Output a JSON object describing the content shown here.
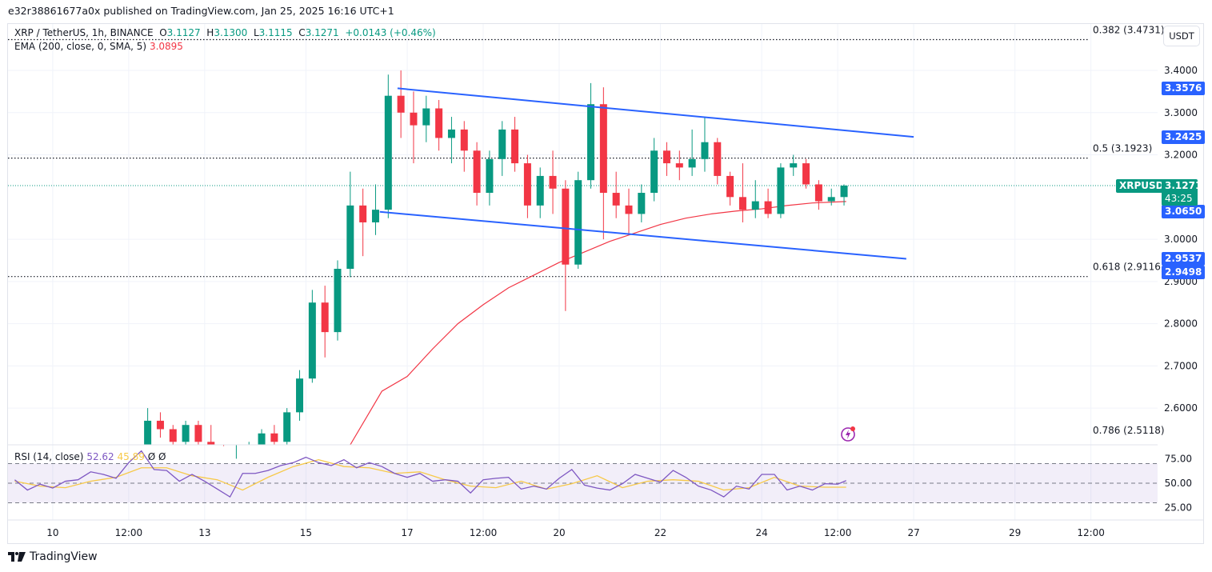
{
  "publish_line": "e32r38861677a0x published on TradingView.com, Jan 25, 2025 16:16 UTC+1",
  "legend": {
    "symbol": "XRP / TetherUS, 1h, BINANCE",
    "o_label": "O",
    "o": "3.1127",
    "h_label": "H",
    "h": "3.1300",
    "l_label": "L",
    "l": "3.1115",
    "c_label": "C",
    "c": "3.1271",
    "change": "+0.0143 (+0.46%)",
    "ema_label": "EMA (200, close, 0, SMA, 5)",
    "ema_value": "3.0895"
  },
  "rsi_legend": {
    "label": "RSI (14, close)",
    "rsi": "52.62",
    "ma": "45.89",
    "extra1": "Ø",
    "extra2": "Ø"
  },
  "currency_button": "USDT",
  "colors": {
    "up": "#089981",
    "down": "#f23645",
    "ema": "#f23645",
    "channel": "#2962ff",
    "rsi": "#7e57c2",
    "rsi_ma": "#f7c948",
    "tag_blue": "#2962ff",
    "tag_green": "#089981",
    "flash": "#9c27b0"
  },
  "price_tags": [
    {
      "value": "3.3576",
      "color": "blue"
    },
    {
      "value": "3.2425",
      "color": "blue"
    },
    {
      "value": "3.0650",
      "color": "blue"
    },
    {
      "value": "2.9537",
      "color": "blue"
    },
    {
      "value": "2.9498",
      "color": "blue"
    }
  ],
  "last_price": {
    "symbol": "XRPUSDT",
    "value": "3.1271",
    "countdown": "43:25"
  },
  "fib_levels": [
    {
      "label": "0.382 (3.4731)",
      "price": 3.4731
    },
    {
      "label": "0.5 (3.1923)",
      "price": 3.1923
    },
    {
      "label": "0.618 (2.9116)",
      "price": 2.9116
    },
    {
      "label": "0.786 (2.5118)",
      "price": 2.5118
    }
  ],
  "flash_icon": "lightning-icon",
  "brand": "TradingView",
  "chart_data": [
    {
      "type": "candlestick",
      "title": "XRP / TetherUS, 1h, BINANCE",
      "ylim": [
        2.513,
        3.51
      ],
      "xlim": [
        "2025-01-09T02:48",
        "2025-01-31T19:36"
      ],
      "grid": true,
      "y_ticks": [
        "3.4000",
        "3.3000",
        "3.2000",
        "3.0000",
        "2.9000",
        "2.8000",
        "2.7000",
        "2.6000"
      ],
      "x_ticks": [
        {
          "label": "10",
          "t": "2025-01-10T00:00"
        },
        {
          "label": "12:00",
          "t": "2025-01-11T12:00"
        },
        {
          "label": "13",
          "t": "2025-01-13T00:00"
        },
        {
          "label": "15",
          "t": "2025-01-15T00:00"
        },
        {
          "label": "17",
          "t": "2025-01-17T00:00"
        },
        {
          "label": "12:00",
          "t": "2025-01-18T12:00"
        },
        {
          "label": "20",
          "t": "2025-01-20T00:00"
        },
        {
          "label": "22",
          "t": "2025-01-22T00:00"
        },
        {
          "label": "24",
          "t": "2025-01-24T00:00"
        },
        {
          "label": "12:00",
          "t": "2025-01-25T12:00"
        },
        {
          "label": "27",
          "t": "2025-01-27T00:00"
        },
        {
          "label": "29",
          "t": "2025-01-29T00:00"
        },
        {
          "label": "12:00",
          "t": "2025-01-30T12:00"
        }
      ],
      "candles_ohlc": [
        [
          "2025-01-11T18:00",
          2.5,
          2.6,
          2.49,
          2.57
        ],
        [
          "2025-01-12T00:00",
          2.57,
          2.59,
          2.53,
          2.55
        ],
        [
          "2025-01-12T06:00",
          2.55,
          2.56,
          2.5,
          2.52
        ],
        [
          "2025-01-12T12:00",
          2.52,
          2.57,
          2.51,
          2.56
        ],
        [
          "2025-01-12T18:00",
          2.56,
          2.57,
          2.5,
          2.52
        ],
        [
          "2025-01-13T00:00",
          2.52,
          2.56,
          2.48,
          2.5
        ],
        [
          "2025-01-13T06:00",
          2.5,
          2.51,
          2.4,
          2.44
        ],
        [
          "2025-01-13T12:00",
          2.44,
          2.48,
          2.38,
          2.46
        ],
        [
          "2025-01-13T18:00",
          2.46,
          2.52,
          2.44,
          2.5
        ],
        [
          "2025-01-14T00:00",
          2.5,
          2.55,
          2.49,
          2.54
        ],
        [
          "2025-01-14T06:00",
          2.54,
          2.56,
          2.51,
          2.52
        ],
        [
          "2025-01-14T12:00",
          2.52,
          2.6,
          2.51,
          2.59
        ],
        [
          "2025-01-14T18:00",
          2.59,
          2.69,
          2.57,
          2.67
        ],
        [
          "2025-01-15T00:00",
          2.67,
          2.88,
          2.66,
          2.85
        ],
        [
          "2025-01-15T06:00",
          2.85,
          2.89,
          2.72,
          2.78
        ],
        [
          "2025-01-15T12:00",
          2.78,
          2.95,
          2.76,
          2.93
        ],
        [
          "2025-01-15T18:00",
          2.93,
          3.16,
          2.91,
          3.08
        ],
        [
          "2025-01-16T00:00",
          3.08,
          3.12,
          2.96,
          3.04
        ],
        [
          "2025-01-16T06:00",
          3.04,
          3.13,
          3.01,
          3.07
        ],
        [
          "2025-01-16T12:00",
          3.07,
          3.39,
          3.05,
          3.34
        ],
        [
          "2025-01-16T18:00",
          3.34,
          3.4,
          3.24,
          3.3
        ],
        [
          "2025-01-17T00:00",
          3.3,
          3.35,
          3.18,
          3.27
        ],
        [
          "2025-01-17T06:00",
          3.27,
          3.34,
          3.23,
          3.31
        ],
        [
          "2025-01-17T12:00",
          3.31,
          3.33,
          3.21,
          3.24
        ],
        [
          "2025-01-17T18:00",
          3.24,
          3.29,
          3.18,
          3.26
        ],
        [
          "2025-01-18T00:00",
          3.26,
          3.28,
          3.16,
          3.21
        ],
        [
          "2025-01-18T06:00",
          3.21,
          3.23,
          3.08,
          3.11
        ],
        [
          "2025-01-18T12:00",
          3.11,
          3.21,
          3.08,
          3.19
        ],
        [
          "2025-01-18T18:00",
          3.19,
          3.28,
          3.15,
          3.26
        ],
        [
          "2025-01-19T00:00",
          3.26,
          3.29,
          3.16,
          3.18
        ],
        [
          "2025-01-19T06:00",
          3.18,
          3.2,
          3.05,
          3.08
        ],
        [
          "2025-01-19T12:00",
          3.08,
          3.17,
          3.05,
          3.15
        ],
        [
          "2025-01-19T18:00",
          3.15,
          3.21,
          3.06,
          3.12
        ],
        [
          "2025-01-20T00:00",
          3.12,
          3.14,
          2.83,
          2.94
        ],
        [
          "2025-01-20T06:00",
          2.94,
          3.16,
          2.93,
          3.14
        ],
        [
          "2025-01-20T12:00",
          3.14,
          3.37,
          3.12,
          3.32
        ],
        [
          "2025-01-20T18:00",
          3.32,
          3.36,
          3.0,
          3.11
        ],
        [
          "2025-01-21T00:00",
          3.11,
          3.16,
          3.05,
          3.08
        ],
        [
          "2025-01-21T06:00",
          3.08,
          3.12,
          3.01,
          3.06
        ],
        [
          "2025-01-21T12:00",
          3.06,
          3.13,
          3.04,
          3.11
        ],
        [
          "2025-01-21T18:00",
          3.11,
          3.24,
          3.09,
          3.21
        ],
        [
          "2025-01-22T00:00",
          3.21,
          3.23,
          3.15,
          3.18
        ],
        [
          "2025-01-22T06:00",
          3.18,
          3.21,
          3.14,
          3.17
        ],
        [
          "2025-01-22T12:00",
          3.17,
          3.26,
          3.15,
          3.19
        ],
        [
          "2025-01-22T18:00",
          3.19,
          3.29,
          3.16,
          3.23
        ],
        [
          "2025-01-23T00:00",
          3.23,
          3.24,
          3.13,
          3.15
        ],
        [
          "2025-01-23T06:00",
          3.15,
          3.16,
          3.08,
          3.1
        ],
        [
          "2025-01-23T12:00",
          3.1,
          3.18,
          3.04,
          3.07
        ],
        [
          "2025-01-23T18:00",
          3.07,
          3.14,
          3.05,
          3.09
        ],
        [
          "2025-01-24T00:00",
          3.09,
          3.12,
          3.05,
          3.06
        ],
        [
          "2025-01-24T06:00",
          3.06,
          3.18,
          3.05,
          3.17
        ],
        [
          "2025-01-24T12:00",
          3.17,
          3.2,
          3.15,
          3.18
        ],
        [
          "2025-01-24T18:00",
          3.18,
          3.19,
          3.12,
          3.13
        ],
        [
          "2025-01-25T00:00",
          3.13,
          3.14,
          3.07,
          3.09
        ],
        [
          "2025-01-25T06:00",
          3.09,
          3.12,
          3.08,
          3.1
        ],
        [
          "2025-01-25T12:00",
          3.1,
          3.13,
          3.08,
          3.1271
        ]
      ],
      "ema200": [
        [
          "2025-01-15T21:00",
          2.51
        ],
        [
          "2025-01-16T12:00",
          2.64
        ],
        [
          "2025-01-17T00:00",
          2.675
        ],
        [
          "2025-01-17T12:00",
          2.74
        ],
        [
          "2025-01-18T00:00",
          2.8
        ],
        [
          "2025-01-18T12:00",
          2.845
        ],
        [
          "2025-01-19T00:00",
          2.885
        ],
        [
          "2025-01-19T12:00",
          2.915
        ],
        [
          "2025-01-20T00:00",
          2.945
        ],
        [
          "2025-01-20T12:00",
          2.97
        ],
        [
          "2025-01-21T00:00",
          2.995
        ],
        [
          "2025-01-21T12:00",
          3.015
        ],
        [
          "2025-01-22T00:00",
          3.035
        ],
        [
          "2025-01-22T12:00",
          3.05
        ],
        [
          "2025-01-23T00:00",
          3.06
        ],
        [
          "2025-01-23T12:00",
          3.067
        ],
        [
          "2025-01-24T00:00",
          3.072
        ],
        [
          "2025-01-24T12:00",
          3.08
        ],
        [
          "2025-01-25T00:00",
          3.086
        ],
        [
          "2025-01-25T16:00",
          3.0895
        ]
      ],
      "channel": {
        "upper": [
          [
            "2025-01-16T19:24",
            3.3576
          ],
          [
            "2025-01-27T00:00",
            3.2425
          ]
        ],
        "lower": [
          [
            "2025-01-16T11:00",
            3.065
          ],
          [
            "2025-01-26T20:30",
            2.9537
          ]
        ]
      }
    },
    {
      "type": "line",
      "title": "RSI (14, close)",
      "ylim": [
        12.4,
        88.4
      ],
      "bands": [
        70,
        50,
        30
      ],
      "y_ticks": [
        "75.00",
        "50.00",
        "25.00"
      ],
      "rsi": [
        [
          "2025-01-09T06:00",
          53.5
        ],
        [
          "2025-01-09T12:00",
          43
        ],
        [
          "2025-01-09T18:00",
          49
        ],
        [
          "2025-01-10T00:00",
          45
        ],
        [
          "2025-01-10T06:00",
          52
        ],
        [
          "2025-01-10T12:00",
          53.5
        ],
        [
          "2025-01-10T18:00",
          61.6
        ],
        [
          "2025-01-11T00:00",
          59
        ],
        [
          "2025-01-11T06:00",
          55
        ],
        [
          "2025-01-11T12:00",
          71
        ],
        [
          "2025-01-11T18:00",
          83
        ],
        [
          "2025-01-12T00:00",
          64
        ],
        [
          "2025-01-12T06:00",
          63
        ],
        [
          "2025-01-12T12:00",
          52
        ],
        [
          "2025-01-12T18:00",
          59
        ],
        [
          "2025-01-13T00:00",
          52
        ],
        [
          "2025-01-13T06:00",
          44
        ],
        [
          "2025-01-13T12:00",
          36
        ],
        [
          "2025-01-13T18:00",
          60
        ],
        [
          "2025-01-14T00:00",
          60
        ],
        [
          "2025-01-14T06:00",
          63
        ],
        [
          "2025-01-14T12:00",
          68
        ],
        [
          "2025-01-14T18:00",
          71
        ],
        [
          "2025-01-15T00:00",
          76.5
        ],
        [
          "2025-01-15T06:00",
          71
        ],
        [
          "2025-01-15T12:00",
          68
        ],
        [
          "2025-01-15T18:00",
          74
        ],
        [
          "2025-01-16T00:00",
          65.7
        ],
        [
          "2025-01-16T06:00",
          71
        ],
        [
          "2025-01-16T12:00",
          67
        ],
        [
          "2025-01-16T18:00",
          60
        ],
        [
          "2025-01-17T00:00",
          56
        ],
        [
          "2025-01-17T06:00",
          60
        ],
        [
          "2025-01-17T12:00",
          52
        ],
        [
          "2025-01-17T18:00",
          53.5
        ],
        [
          "2025-01-18T00:00",
          52
        ],
        [
          "2025-01-18T06:00",
          40
        ],
        [
          "2025-01-18T12:00",
          53.5
        ],
        [
          "2025-01-18T18:00",
          55
        ],
        [
          "2025-01-19T00:00",
          56
        ],
        [
          "2025-01-19T06:00",
          44
        ],
        [
          "2025-01-19T12:00",
          47
        ],
        [
          "2025-01-19T18:00",
          44
        ],
        [
          "2025-01-20T00:00",
          55
        ],
        [
          "2025-01-20T06:00",
          64
        ],
        [
          "2025-01-20T12:00",
          48
        ],
        [
          "2025-01-20T18:00",
          45
        ],
        [
          "2025-01-21T00:00",
          43
        ],
        [
          "2025-01-21T06:00",
          49.5
        ],
        [
          "2025-01-21T12:00",
          59
        ],
        [
          "2025-01-21T18:00",
          55
        ],
        [
          "2025-01-22T00:00",
          51
        ],
        [
          "2025-01-22T06:00",
          63
        ],
        [
          "2025-01-22T12:00",
          56
        ],
        [
          "2025-01-22T18:00",
          47
        ],
        [
          "2025-01-23T00:00",
          43
        ],
        [
          "2025-01-23T06:00",
          36
        ],
        [
          "2025-01-23T12:00",
          47
        ],
        [
          "2025-01-23T18:00",
          44
        ],
        [
          "2025-01-24T00:00",
          59
        ],
        [
          "2025-01-24T06:00",
          59
        ],
        [
          "2025-01-24T12:00",
          43
        ],
        [
          "2025-01-24T18:00",
          47
        ],
        [
          "2025-01-25T00:00",
          43
        ],
        [
          "2025-01-25T06:00",
          49.5
        ],
        [
          "2025-01-25T12:00",
          49
        ],
        [
          "2025-01-25T16:00",
          52.62
        ]
      ],
      "rsi_ma": [
        [
          "2025-01-09T06:00",
          52
        ],
        [
          "2025-01-09T18:00",
          47
        ],
        [
          "2025-01-10T06:00",
          45.4
        ],
        [
          "2025-01-10T18:00",
          52
        ],
        [
          "2025-01-11T06:00",
          56
        ],
        [
          "2025-01-11T18:00",
          65.7
        ],
        [
          "2025-01-12T06:00",
          65.7
        ],
        [
          "2025-01-12T18:00",
          57.6
        ],
        [
          "2025-01-13T06:00",
          53.5
        ],
        [
          "2025-01-13T18:00",
          43
        ],
        [
          "2025-01-14T06:00",
          56
        ],
        [
          "2025-01-14T18:00",
          67
        ],
        [
          "2025-01-15T06:00",
          74
        ],
        [
          "2025-01-15T18:00",
          67
        ],
        [
          "2025-01-16T06:00",
          65.7
        ],
        [
          "2025-01-16T18:00",
          60
        ],
        [
          "2025-01-17T06:00",
          61.6
        ],
        [
          "2025-01-17T18:00",
          53.5
        ],
        [
          "2025-01-18T06:00",
          47
        ],
        [
          "2025-01-18T18:00",
          45.4
        ],
        [
          "2025-01-19T06:00",
          52
        ],
        [
          "2025-01-19T18:00",
          44
        ],
        [
          "2025-01-20T06:00",
          49.5
        ],
        [
          "2025-01-20T18:00",
          57.6
        ],
        [
          "2025-01-21T06:00",
          45.4
        ],
        [
          "2025-01-21T18:00",
          52
        ],
        [
          "2025-01-22T06:00",
          53.5
        ],
        [
          "2025-01-22T18:00",
          52
        ],
        [
          "2025-01-23T06:00",
          43
        ],
        [
          "2025-01-23T18:00",
          45.4
        ],
        [
          "2025-01-24T06:00",
          56
        ],
        [
          "2025-01-24T18:00",
          47
        ],
        [
          "2025-01-25T06:00",
          45.9
        ],
        [
          "2025-01-25T16:00",
          45.89
        ]
      ]
    }
  ]
}
